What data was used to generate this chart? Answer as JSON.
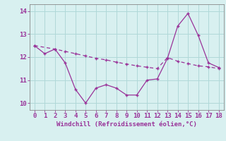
{
  "line1_x": [
    0,
    1,
    2,
    3,
    4,
    5,
    6,
    7,
    8,
    9,
    10,
    11,
    12,
    13,
    14,
    15,
    16,
    17,
    18
  ],
  "line1_y": [
    12.5,
    12.15,
    12.35,
    11.75,
    10.6,
    10.0,
    10.65,
    10.8,
    10.65,
    10.35,
    10.35,
    11.0,
    11.05,
    11.95,
    13.35,
    13.9,
    12.95,
    11.75,
    11.55
  ],
  "line2_x": [
    0,
    2,
    3,
    4,
    5,
    6,
    7,
    8,
    9,
    10,
    11,
    12,
    13,
    14,
    15,
    16,
    17,
    18
  ],
  "line2_y": [
    12.5,
    12.35,
    12.25,
    12.15,
    12.05,
    11.95,
    11.88,
    11.78,
    11.7,
    11.62,
    11.56,
    11.5,
    11.98,
    11.82,
    11.72,
    11.62,
    11.58,
    11.5
  ],
  "line_color": "#993399",
  "bg_color": "#d8f0f0",
  "grid_color": "#b0d8d8",
  "xlabel": "Windchill (Refroidissement éolien,°C)",
  "ylim": [
    9.7,
    14.3
  ],
  "xlim": [
    -0.5,
    18.5
  ],
  "yticks": [
    10,
    11,
    12,
    13,
    14
  ],
  "xticks": [
    0,
    1,
    2,
    3,
    4,
    5,
    6,
    7,
    8,
    9,
    10,
    11,
    12,
    13,
    14,
    15,
    16,
    17,
    18
  ]
}
